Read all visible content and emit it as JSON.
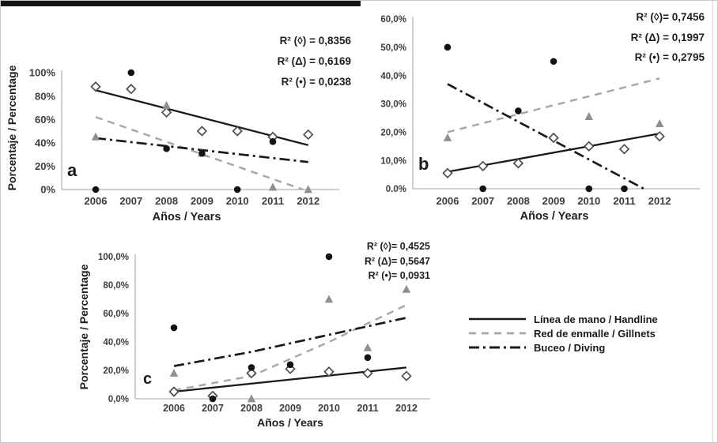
{
  "figure": {
    "description": "Three scatter panels (a, b, c) of fishing-method percentages by year with linear trendlines",
    "colors": {
      "solid_line": "#1a1a1a",
      "dashed_line": "#a8a8a8",
      "dashdot_line": "#1a1a1a",
      "diamond_stroke": "#4d4d4d",
      "diamond_fill": "#ffffff",
      "triangle_fill": "#8f8f8f",
      "circle_fill": "#121212"
    }
  },
  "legend": {
    "items": [
      {
        "label": "Línea de mano / Handline",
        "style": "solid",
        "color": "#1a1a1a"
      },
      {
        "label": "Red de enmalle / Gillnets",
        "style": "dashed",
        "color": "#a8a8a8"
      },
      {
        "label": "Buceo / Diving",
        "style": "dashdot",
        "color": "#1a1a1a"
      }
    ]
  },
  "chart_data": [
    {
      "id": "a",
      "panel_label": "a",
      "type": "scatter",
      "xlabel": "Años / Years",
      "ylabel": "Porcentaje / Percentage",
      "x_categories": [
        "2006",
        "2007",
        "2008",
        "2009",
        "2010",
        "2011",
        "2012"
      ],
      "ylim": [
        0,
        100
      ],
      "yticks": {
        "values": [
          0,
          20,
          40,
          60,
          80,
          100
        ],
        "labels": [
          "0%",
          "20%",
          "40%",
          "60%",
          "80%",
          "100%"
        ]
      },
      "r2_annotations": [
        "R² (◊) = 0,8356",
        "R² (Δ) = 0,6169",
        "R² (•) = 0,0238"
      ],
      "series": [
        {
          "name": "Línea de mano / Handline",
          "marker": "diamond",
          "points": [
            [
              2006,
              88
            ],
            [
              2007,
              86
            ],
            [
              2008,
              66
            ],
            [
              2009,
              50
            ],
            [
              2010,
              50
            ],
            [
              2011,
              45
            ],
            [
              2012,
              47
            ]
          ]
        },
        {
          "name": "Red de enmalle / Gillnets",
          "marker": "triangle",
          "points": [
            [
              2006,
              45
            ],
            [
              2008,
              72
            ],
            [
              2009,
              31
            ],
            [
              2011,
              2
            ],
            [
              2012,
              0
            ]
          ]
        },
        {
          "name": "Buceo / Diving",
          "marker": "circle",
          "points": [
            [
              2006,
              0
            ],
            [
              2007,
              100
            ],
            [
              2008,
              35
            ],
            [
              2009,
              31
            ],
            [
              2010,
              0
            ],
            [
              2011,
              41
            ]
          ]
        }
      ],
      "trendlines": [
        {
          "series": "Línea de mano / Handline",
          "style": "solid",
          "points": [
            [
              2006,
              85
            ],
            [
              2012,
              38
            ]
          ]
        },
        {
          "series": "Red de enmalle / Gillnets",
          "style": "dashed",
          "points": [
            [
              2006,
              62
            ],
            [
              2011.85,
              0
            ]
          ]
        },
        {
          "series": "Buceo / Diving",
          "style": "dashdot",
          "points": [
            [
              2006,
              44
            ],
            [
              2012,
              23.5
            ]
          ]
        }
      ]
    },
    {
      "id": "b",
      "panel_label": "b",
      "type": "scatter",
      "xlabel": "Años / Years",
      "ylabel": "",
      "x_categories": [
        "2006",
        "2007",
        "2008",
        "2009",
        "2010",
        "2011",
        "2012"
      ],
      "ylim": [
        0,
        60
      ],
      "yticks": {
        "values": [
          0,
          10,
          20,
          30,
          40,
          50,
          60
        ],
        "labels": [
          "0.0%",
          "10,0%",
          "20,0%",
          "30,0%",
          "40,0%",
          "50,0%",
          "60,0%"
        ]
      },
      "r2_annotations": [
        "R² (◊)= 0,7456",
        "R² (Δ) = 0,1997",
        "R² (•) = 0,2795"
      ],
      "series": [
        {
          "name": "Línea de mano / Handline",
          "marker": "diamond",
          "points": [
            [
              2006,
              5.5
            ],
            [
              2007,
              8
            ],
            [
              2008,
              9
            ],
            [
              2009,
              18
            ],
            [
              2010,
              15
            ],
            [
              2011,
              14
            ],
            [
              2012,
              18.5
            ]
          ]
        },
        {
          "name": "Red de enmalle / Gillnets",
          "marker": "triangle",
          "points": [
            [
              2006,
              18
            ],
            [
              2010,
              25.5
            ],
            [
              2012,
              23
            ]
          ]
        },
        {
          "name": "Buceo / Diving",
          "marker": "circle",
          "points": [
            [
              2006,
              50
            ],
            [
              2007,
              0
            ],
            [
              2008,
              27.5
            ],
            [
              2009,
              45
            ],
            [
              2010,
              0
            ],
            [
              2011,
              0
            ]
          ]
        }
      ],
      "trendlines": [
        {
          "series": "Línea de mano / Handline",
          "style": "solid",
          "points": [
            [
              2006,
              6
            ],
            [
              2012,
              19.5
            ]
          ]
        },
        {
          "series": "Red de enmalle / Gillnets",
          "style": "dashed",
          "points": [
            [
              2006,
              20
            ],
            [
              2012,
              39
            ]
          ]
        },
        {
          "series": "Buceo / Diving",
          "style": "dashdot",
          "points": [
            [
              2006,
              37
            ],
            [
              2011.55,
              0
            ]
          ]
        }
      ]
    },
    {
      "id": "c",
      "panel_label": "c",
      "type": "scatter",
      "xlabel": "Años / Years",
      "ylabel": "Porcentaje / Percentage",
      "x_categories": [
        "2006",
        "2007",
        "2008",
        "2009",
        "2010",
        "2011",
        "2012"
      ],
      "ylim": [
        0,
        100
      ],
      "yticks": {
        "values": [
          0,
          20,
          40,
          60,
          80,
          100
        ],
        "labels": [
          "0,0%",
          "20,0%",
          "40,0%",
          "60,0%",
          "80,0%",
          "100,0%"
        ]
      },
      "r2_annotations": [
        "R² (◊)= 0,4525",
        "R² (Δ)= 0,5647",
        "R² (•)= 0,0931"
      ],
      "series": [
        {
          "name": "Línea de mano / Handline",
          "marker": "diamond",
          "points": [
            [
              2006,
              5
            ],
            [
              2007,
              2
            ],
            [
              2008,
              18
            ],
            [
              2009,
              21
            ],
            [
              2010,
              19
            ],
            [
              2011,
              18
            ],
            [
              2012,
              16
            ]
          ]
        },
        {
          "name": "Red de enmalle / Gillnets",
          "marker": "triangle",
          "points": [
            [
              2006,
              18
            ],
            [
              2008,
              0
            ],
            [
              2010,
              70
            ],
            [
              2011,
              36
            ],
            [
              2012,
              77
            ]
          ]
        },
        {
          "name": "Buceo / Diving",
          "marker": "circle",
          "points": [
            [
              2006,
              50
            ],
            [
              2007,
              0
            ],
            [
              2008,
              22
            ],
            [
              2009,
              24
            ],
            [
              2010,
              100
            ],
            [
              2011,
              29
            ]
          ]
        }
      ],
      "trendlines": [
        {
          "series": "Línea de mano / Handline",
          "style": "solid",
          "points": [
            [
              2006,
              5
            ],
            [
              2012,
              22
            ]
          ]
        },
        {
          "series": "Red de enmalle / Gillnets",
          "style": "dashed",
          "points": [
            [
              2006,
              6
            ],
            [
              2008,
              16
            ],
            [
              2010,
              40
            ],
            [
              2012,
              66
            ]
          ]
        },
        {
          "series": "Buceo / Diving",
          "style": "dashdot",
          "points": [
            [
              2006,
              23
            ],
            [
              2008,
              33
            ],
            [
              2010,
              45
            ],
            [
              2012,
              57
            ]
          ]
        }
      ]
    }
  ]
}
